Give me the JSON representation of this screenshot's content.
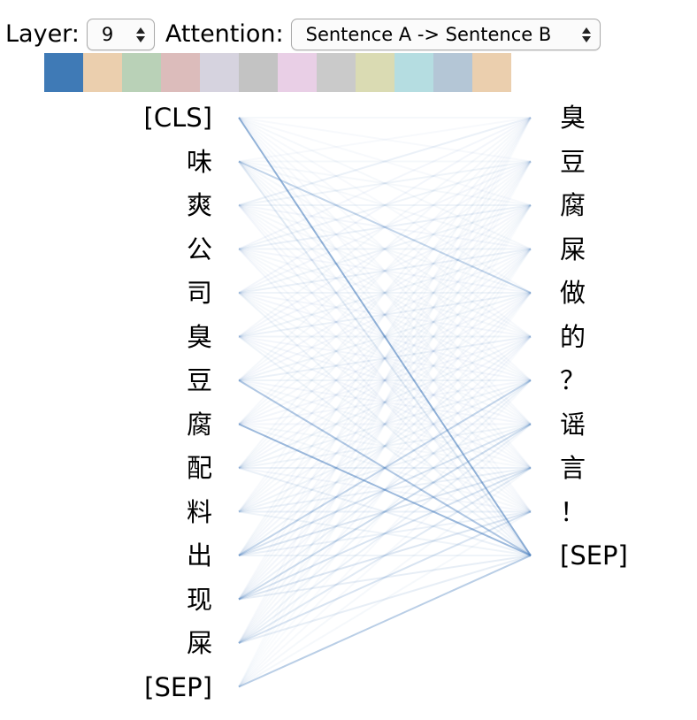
{
  "controls": {
    "layer_label": "Layer:",
    "layer_value": "9",
    "attention_label": "Attention:",
    "attention_value": "Sentence A -> Sentence B"
  },
  "head_colors": [
    "#3f7ab6",
    "#ebcfae",
    "#b9d1b7",
    "#dcbcbb",
    "#d6d3df",
    "#c3c3c3",
    "#e9cfe6",
    "#cacaca",
    "#dadbb3",
    "#b5dde1",
    "#b4c6d6",
    "#ebcfae"
  ],
  "attention_color": "#4a7fbf",
  "sentence_a": [
    "[CLS]",
    "味",
    "爽",
    "公",
    "司",
    "臭",
    "豆",
    "腐",
    "配",
    "料",
    "出",
    "现",
    "屎",
    "[SEP]"
  ],
  "sentence_b": [
    "臭",
    "豆",
    "腐",
    "屎",
    "做",
    "的",
    "？",
    "谣",
    "言",
    "！",
    "[SEP]"
  ],
  "attention_weights": [
    [
      0.05,
      0.04,
      0.04,
      0.05,
      0.04,
      0.04,
      0.04,
      0.04,
      0.04,
      0.04,
      0.55
    ],
    [
      0.04,
      0.05,
      0.05,
      0.05,
      0.3,
      0.05,
      0.04,
      0.05,
      0.05,
      0.04,
      0.15
    ],
    [
      0.1,
      0.08,
      0.08,
      0.06,
      0.05,
      0.05,
      0.05,
      0.04,
      0.04,
      0.04,
      0.06
    ],
    [
      0.06,
      0.08,
      0.1,
      0.08,
      0.06,
      0.05,
      0.05,
      0.05,
      0.04,
      0.04,
      0.06
    ],
    [
      0.06,
      0.06,
      0.08,
      0.1,
      0.08,
      0.06,
      0.06,
      0.05,
      0.05,
      0.05,
      0.08
    ],
    [
      0.05,
      0.06,
      0.06,
      0.08,
      0.1,
      0.08,
      0.06,
      0.06,
      0.06,
      0.05,
      0.08
    ],
    [
      0.05,
      0.05,
      0.06,
      0.06,
      0.08,
      0.1,
      0.08,
      0.06,
      0.05,
      0.05,
      0.4
    ],
    [
      0.04,
      0.05,
      0.05,
      0.05,
      0.06,
      0.06,
      0.06,
      0.06,
      0.05,
      0.05,
      0.5
    ],
    [
      0.05,
      0.05,
      0.05,
      0.06,
      0.06,
      0.08,
      0.08,
      0.08,
      0.1,
      0.06,
      0.1
    ],
    [
      0.04,
      0.04,
      0.05,
      0.05,
      0.05,
      0.06,
      0.08,
      0.08,
      0.1,
      0.1,
      0.08
    ],
    [
      0.05,
      0.05,
      0.05,
      0.06,
      0.06,
      0.08,
      0.3,
      0.2,
      0.18,
      0.1,
      0.08
    ],
    [
      0.04,
      0.04,
      0.05,
      0.05,
      0.06,
      0.06,
      0.1,
      0.25,
      0.2,
      0.18,
      0.12
    ],
    [
      0.04,
      0.04,
      0.04,
      0.05,
      0.05,
      0.06,
      0.08,
      0.1,
      0.15,
      0.2,
      0.12
    ],
    [
      0.03,
      0.03,
      0.03,
      0.03,
      0.03,
      0.03,
      0.04,
      0.04,
      0.05,
      0.05,
      0.35
    ]
  ]
}
